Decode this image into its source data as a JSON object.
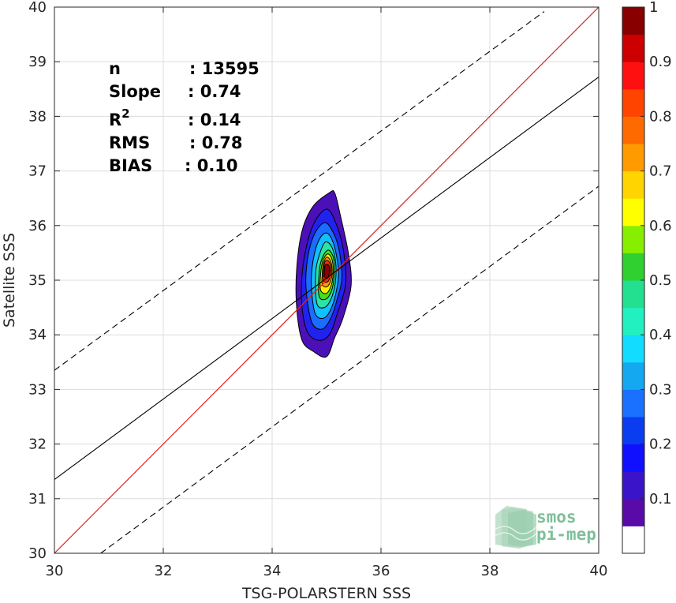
{
  "chart_data": {
    "type": "contour",
    "xlabel": "TSG-POLARSTERN SSS",
    "ylabel": "Satellite SSS",
    "xlim": [
      30,
      40
    ],
    "ylim": [
      30,
      40
    ],
    "xticks": [
      "30",
      "32",
      "34",
      "36",
      "38",
      "40"
    ],
    "yticks": [
      "30",
      "31",
      "32",
      "33",
      "34",
      "35",
      "36",
      "37",
      "38",
      "39",
      "40"
    ],
    "grid": true,
    "stats": {
      "n": "13595",
      "slope": "0.74",
      "r2": "0.14",
      "rms": "0.78",
      "bias": "0.10"
    },
    "stats_labels": {
      "n_label": "n",
      "slope_label": "Slope",
      "r_label": "R",
      "r_sup": "2",
      "rms_label": "RMS",
      "bias_label": "BIAS"
    },
    "lines": {
      "one_to_one": {
        "slope": 1.0,
        "intercept": 0.0,
        "color": "#dd2222"
      },
      "regression": {
        "points": [
          [
            30,
            31.35
          ],
          [
            40,
            38.72
          ]
        ],
        "color": "#000000"
      },
      "upper_bound": {
        "points": [
          [
            30,
            33.35
          ],
          [
            39,
            39.92
          ]
        ],
        "style": "dashed"
      },
      "lower_bound": {
        "points": [
          [
            30.85,
            30.0
          ],
          [
            40,
            36.72
          ]
        ],
        "style": "dashed"
      }
    },
    "density_center": {
      "x": 35.0,
      "y": 35.15
    },
    "contour_levels": [
      {
        "level": 0.05,
        "color": "#4b10b8",
        "outline": [
          [
            34.55,
            33.9
          ],
          [
            34.75,
            33.7
          ],
          [
            35.0,
            33.6
          ],
          [
            35.15,
            33.95
          ],
          [
            35.3,
            34.3
          ],
          [
            35.45,
            34.9
          ],
          [
            35.4,
            35.5
          ],
          [
            35.25,
            36.2
          ],
          [
            35.15,
            36.6
          ],
          [
            35.05,
            36.6
          ],
          [
            34.75,
            36.35
          ],
          [
            34.55,
            35.9
          ],
          [
            34.45,
            35.2
          ],
          [
            34.45,
            34.5
          ]
        ]
      },
      {
        "level": 0.15,
        "color": "#2222ee",
        "outline": [
          [
            34.65,
            34.05
          ],
          [
            34.85,
            33.9
          ],
          [
            35.05,
            34.0
          ],
          [
            35.2,
            34.4
          ],
          [
            35.35,
            34.95
          ],
          [
            35.3,
            35.6
          ],
          [
            35.15,
            36.1
          ],
          [
            35.0,
            36.3
          ],
          [
            34.8,
            36.1
          ],
          [
            34.65,
            35.7
          ],
          [
            34.55,
            35.1
          ],
          [
            34.55,
            34.5
          ]
        ]
      },
      {
        "level": 0.25,
        "color": "#1a6dff",
        "outline": [
          [
            34.72,
            34.25
          ],
          [
            34.9,
            34.1
          ],
          [
            35.05,
            34.25
          ],
          [
            35.18,
            34.6
          ],
          [
            35.28,
            35.05
          ],
          [
            35.22,
            35.6
          ],
          [
            35.08,
            35.95
          ],
          [
            34.95,
            36.05
          ],
          [
            34.78,
            35.85
          ],
          [
            34.66,
            35.45
          ],
          [
            34.62,
            34.9
          ]
        ]
      },
      {
        "level": 0.35,
        "color": "#12bfff",
        "outline": [
          [
            34.78,
            34.42
          ],
          [
            34.93,
            34.3
          ],
          [
            35.07,
            34.45
          ],
          [
            35.18,
            34.8
          ],
          [
            35.22,
            35.15
          ],
          [
            35.15,
            35.6
          ],
          [
            35.03,
            35.85
          ],
          [
            34.9,
            35.8
          ],
          [
            34.78,
            35.5
          ],
          [
            34.72,
            35.0
          ]
        ]
      },
      {
        "level": 0.45,
        "color": "#2ae3a5",
        "outline": [
          [
            34.82,
            34.58
          ],
          [
            34.96,
            34.5
          ],
          [
            35.08,
            34.65
          ],
          [
            35.16,
            34.95
          ],
          [
            35.17,
            35.3
          ],
          [
            35.1,
            35.6
          ],
          [
            34.98,
            35.7
          ],
          [
            34.88,
            35.5
          ],
          [
            34.8,
            35.15
          ]
        ]
      },
      {
        "level": 0.55,
        "color": "#44dd22",
        "outline": [
          [
            34.86,
            34.72
          ],
          [
            34.98,
            34.65
          ],
          [
            35.09,
            34.8
          ],
          [
            35.14,
            35.1
          ],
          [
            35.13,
            35.4
          ],
          [
            35.04,
            35.55
          ],
          [
            34.94,
            35.45
          ],
          [
            34.87,
            35.2
          ]
        ]
      },
      {
        "level": 0.65,
        "color": "#ffee00",
        "outline": [
          [
            34.89,
            34.82
          ],
          [
            35.0,
            34.76
          ],
          [
            35.09,
            34.92
          ],
          [
            35.12,
            35.15
          ],
          [
            35.1,
            35.38
          ],
          [
            35.02,
            35.48
          ],
          [
            34.93,
            35.35
          ],
          [
            34.89,
            35.1
          ]
        ]
      },
      {
        "level": 0.75,
        "color": "#ff9900",
        "outline": [
          [
            34.92,
            34.92
          ],
          [
            35.01,
            34.88
          ],
          [
            35.08,
            35.0
          ],
          [
            35.1,
            35.2
          ],
          [
            35.07,
            35.36
          ],
          [
            35.0,
            35.42
          ],
          [
            34.94,
            35.3
          ],
          [
            34.92,
            35.12
          ]
        ]
      },
      {
        "level": 0.85,
        "color": "#ff3300",
        "outline": [
          [
            34.94,
            35.0
          ],
          [
            35.02,
            34.97
          ],
          [
            35.07,
            35.08
          ],
          [
            35.08,
            35.22
          ],
          [
            35.05,
            35.33
          ],
          [
            34.99,
            35.36
          ],
          [
            34.95,
            35.26
          ]
        ]
      },
      {
        "level": 0.95,
        "color": "#8b0000",
        "outline": [
          [
            34.96,
            35.06
          ],
          [
            35.02,
            35.04
          ],
          [
            35.05,
            35.13
          ],
          [
            35.05,
            35.24
          ],
          [
            35.02,
            35.29
          ],
          [
            34.97,
            35.27
          ],
          [
            34.96,
            35.17
          ]
        ]
      }
    ],
    "colorbar": {
      "ticks": [
        "0.1",
        "0.2",
        "0.3",
        "0.4",
        "0.5",
        "0.6",
        "0.7",
        "0.8",
        "0.9",
        "1"
      ],
      "colors": [
        "#ffffff",
        "#5a0aa8",
        "#3a14c8",
        "#1010ff",
        "#0a3cf0",
        "#1a70ff",
        "#14a8f0",
        "#12dcff",
        "#22f0c0",
        "#22e090",
        "#30d030",
        "#88ee00",
        "#ffff00",
        "#ffd400",
        "#ff9a00",
        "#ff6a00",
        "#ff4400",
        "#ff1010",
        "#cc0000",
        "#880000"
      ]
    }
  },
  "logo": {
    "line1": "smos",
    "line2": "pi-mep"
  }
}
